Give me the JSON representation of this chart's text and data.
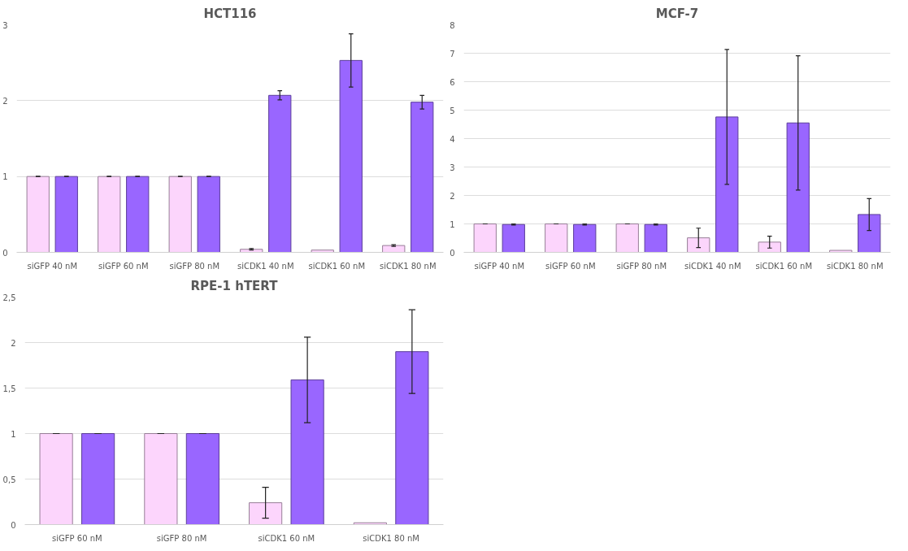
{
  "chart_data": [
    {
      "type": "bar",
      "title": "HCT116",
      "categories": [
        "siGFP 40 nM",
        "siGFP 60 nM",
        "siGFP 80 nM",
        "siCDK1 40 nM",
        "siCDK1 60 nM",
        "siCDK1 80 nM"
      ],
      "ylim": [
        0,
        3
      ],
      "yticks": [
        0,
        1,
        2,
        3
      ],
      "grid": "y",
      "series": [
        {
          "color": "#fcd5fc",
          "values": [
            1,
            1,
            1,
            0.04,
            0.03,
            0.09
          ],
          "errors": [
            0,
            0,
            0,
            0.01,
            null,
            0.01
          ]
        },
        {
          "color": "#9966ff",
          "values": [
            1,
            1,
            1,
            2.07,
            2.53,
            1.98
          ],
          "errors": [
            0,
            0,
            0,
            0.06,
            0.35,
            0.09
          ]
        }
      ]
    },
    {
      "type": "bar",
      "title": "MCF-7",
      "categories": [
        "siGFP 40 nM",
        "siGFP 60 nM",
        "siGFP 80 nM",
        "siCDK1 40 nM",
        "siCDK1 60 nM",
        "siCDK1 80 nM"
      ],
      "ylim": [
        0,
        8
      ],
      "yticks": [
        0,
        1,
        2,
        3,
        4,
        5,
        6,
        7,
        8
      ],
      "grid": "y",
      "series": [
        {
          "color": "#fcd5fc",
          "values": [
            1,
            1,
            1,
            0.51,
            0.36,
            0.07
          ],
          "errors": [
            0,
            0,
            0,
            0.34,
            0.21,
            null
          ]
        },
        {
          "color": "#9966ff",
          "values": [
            0.98,
            0.98,
            0.98,
            4.76,
            4.55,
            1.33
          ],
          "errors": [
            0.02,
            0.02,
            0.02,
            2.37,
            2.36,
            0.56
          ]
        }
      ]
    },
    {
      "type": "bar",
      "title": "RPE-1 hTERT",
      "categories": [
        "siGFP 60 nM",
        "siGFP 80 nM",
        "siCDK1 60 nM",
        "siCDK1 80 nM"
      ],
      "ylim": [
        0,
        2.5
      ],
      "yticks": [
        0,
        {
          "value": 0.5,
          "label": "0,5"
        },
        1,
        {
          "value": 1.5,
          "label": "1,5"
        },
        2,
        {
          "value": 2.5,
          "label": "2,5"
        }
      ],
      "grid": "y",
      "series": [
        {
          "color": "#fcd5fc",
          "values": [
            1,
            1,
            0.24,
            0.02
          ],
          "errors": [
            0,
            0,
            0.17,
            null
          ]
        },
        {
          "color": "#9966ff",
          "values": [
            1,
            1,
            1.59,
            1.9
          ],
          "errors": [
            0,
            0,
            0.47,
            0.46
          ]
        }
      ]
    }
  ]
}
